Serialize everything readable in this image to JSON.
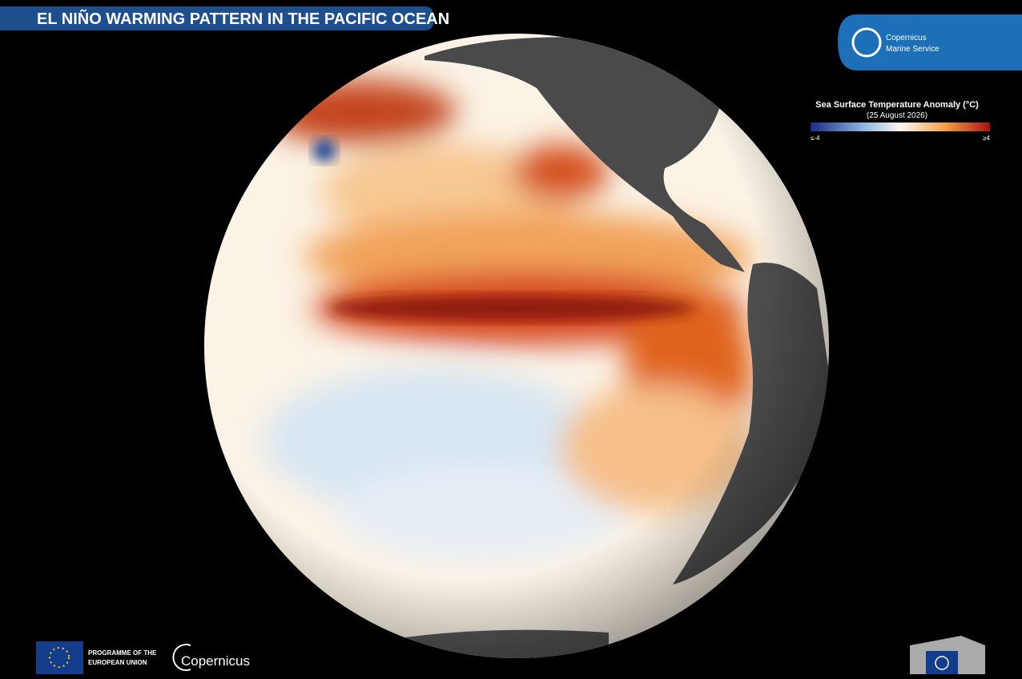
{
  "header": {
    "title": "EL NIÑO WARMING PATTERN IN THE PACIFIC OCEAN"
  },
  "logo": {
    "line1": "Copernicus",
    "line2": "Marine Service"
  },
  "legend": {
    "title": "Sea Surface Temperature Anomaly (°C)",
    "subtitle": "(25 August 2026)",
    "min_label": "≤-4",
    "max_label": "≥4"
  },
  "footer": {
    "eu_line1": "PROGRAMME OF THE",
    "eu_line2": "EUROPEAN UNION",
    "copernicus": "Copernicus"
  }
}
